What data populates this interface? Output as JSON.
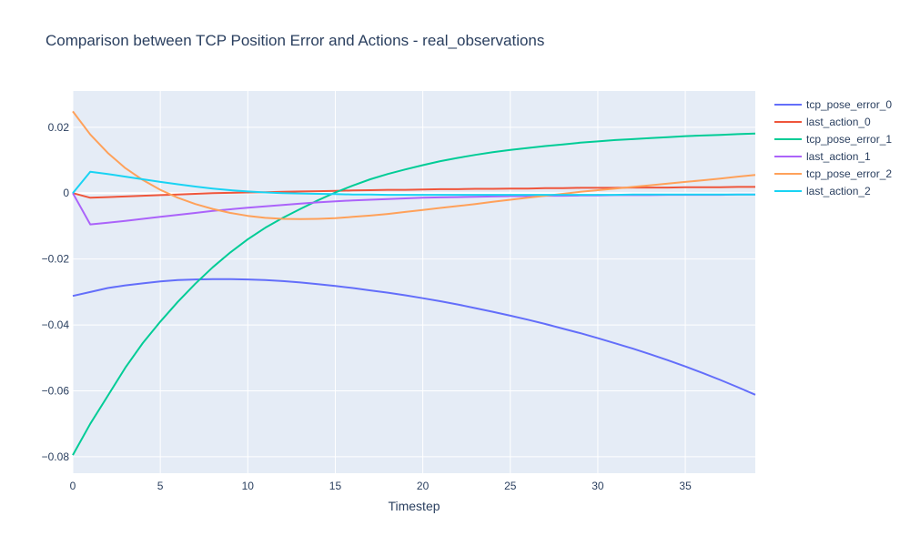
{
  "chart_data": {
    "type": "line",
    "title": "Comparison between TCP Position Error and Actions - real_observations",
    "xlabel": "Timestep",
    "ylabel": "",
    "xlim": [
      0,
      39
    ],
    "ylim": [
      -0.085,
      0.031
    ],
    "xticks": [
      0,
      5,
      10,
      15,
      20,
      25,
      30,
      35
    ],
    "xtick_labels": [
      "0",
      "5",
      "10",
      "15",
      "20",
      "25",
      "30",
      "35"
    ],
    "yticks": [
      0.02,
      0,
      -0.02,
      -0.04,
      -0.06,
      -0.08
    ],
    "ytick_labels": [
      "0.02",
      "0",
      "−0.02",
      "−0.04",
      "−0.06",
      "−0.08"
    ],
    "grid": true,
    "legend_position": "right",
    "x": [
      0,
      1,
      2,
      3,
      4,
      5,
      6,
      7,
      8,
      9,
      10,
      11,
      12,
      13,
      14,
      15,
      16,
      17,
      18,
      19,
      20,
      21,
      22,
      23,
      24,
      25,
      26,
      27,
      28,
      29,
      30,
      31,
      32,
      33,
      34,
      35,
      36,
      37,
      38,
      39
    ],
    "series": [
      {
        "name": "tcp_pose_error_0",
        "color": "#636efa",
        "values": [
          -0.0312,
          -0.03,
          -0.0288,
          -0.028,
          -0.0274,
          -0.0268,
          -0.0264,
          -0.0262,
          -0.0261,
          -0.0261,
          -0.0262,
          -0.0264,
          -0.0267,
          -0.0271,
          -0.0276,
          -0.0282,
          -0.0288,
          -0.0295,
          -0.0302,
          -0.031,
          -0.0319,
          -0.0328,
          -0.0338,
          -0.0349,
          -0.036,
          -0.0372,
          -0.0384,
          -0.0397,
          -0.0411,
          -0.0425,
          -0.044,
          -0.0456,
          -0.0472,
          -0.0489,
          -0.0507,
          -0.0526,
          -0.0546,
          -0.0567,
          -0.0589,
          -0.0612
        ]
      },
      {
        "name": "last_action_0",
        "color": "#ef553b",
        "values": [
          0.0,
          -0.0014,
          -0.0012,
          -0.001,
          -0.0008,
          -0.0006,
          -0.0004,
          -0.0002,
          0.0,
          0.0001,
          0.0002,
          0.0003,
          0.0004,
          0.0005,
          0.0006,
          0.0007,
          0.0008,
          0.0009,
          0.001,
          0.001,
          0.0011,
          0.0012,
          0.0012,
          0.0013,
          0.0013,
          0.0014,
          0.0014,
          0.0015,
          0.0015,
          0.0016,
          0.0016,
          0.0016,
          0.0017,
          0.0017,
          0.0017,
          0.0018,
          0.0018,
          0.0018,
          0.0019,
          0.0019
        ]
      },
      {
        "name": "tcp_pose_error_1",
        "color": "#00cc96",
        "values": [
          -0.0795,
          -0.07,
          -0.0615,
          -0.053,
          -0.0455,
          -0.039,
          -0.033,
          -0.0275,
          -0.0225,
          -0.018,
          -0.014,
          -0.0105,
          -0.0075,
          -0.0048,
          -0.0022,
          0.0002,
          0.0023,
          0.0042,
          0.0058,
          0.0072,
          0.0085,
          0.0097,
          0.0107,
          0.0116,
          0.0124,
          0.0131,
          0.0137,
          0.0143,
          0.0148,
          0.0153,
          0.0157,
          0.0161,
          0.0164,
          0.0167,
          0.017,
          0.0173,
          0.0175,
          0.0177,
          0.0179,
          0.0181
        ]
      },
      {
        "name": "last_action_1",
        "color": "#ab63fa",
        "values": [
          0.0,
          -0.0095,
          -0.009,
          -0.0084,
          -0.0078,
          -0.0072,
          -0.0066,
          -0.006,
          -0.0054,
          -0.0049,
          -0.0044,
          -0.004,
          -0.0036,
          -0.0032,
          -0.0028,
          -0.0025,
          -0.0022,
          -0.002,
          -0.0018,
          -0.0016,
          -0.0014,
          -0.0013,
          -0.0012,
          -0.0011,
          -0.001,
          -0.0009,
          -0.0009,
          -0.0008,
          -0.0008,
          -0.0007,
          -0.0007,
          -0.0006,
          -0.0006,
          -0.0006,
          -0.0005,
          -0.0005,
          -0.0005,
          -0.0005,
          -0.0004,
          -0.0004
        ]
      },
      {
        "name": "tcp_pose_error_2",
        "color": "#ffa15a",
        "values": [
          0.0248,
          0.0178,
          0.0122,
          0.0076,
          0.004,
          0.001,
          -0.0014,
          -0.0033,
          -0.0048,
          -0.006,
          -0.0069,
          -0.0075,
          -0.0078,
          -0.0079,
          -0.0078,
          -0.0076,
          -0.0072,
          -0.0068,
          -0.0063,
          -0.0057,
          -0.0051,
          -0.0045,
          -0.0039,
          -0.0033,
          -0.0026,
          -0.002,
          -0.0014,
          -0.0008,
          -0.0002,
          0.0004,
          0.0009,
          0.0014,
          0.0019,
          0.0024,
          0.0029,
          0.0034,
          0.0039,
          0.0044,
          0.005,
          0.0055
        ]
      },
      {
        "name": "last_action_2",
        "color": "#19d3f3",
        "values": [
          0.0,
          0.0065,
          0.0058,
          0.005,
          0.0042,
          0.0034,
          0.0027,
          0.002,
          0.0014,
          0.0009,
          0.0005,
          0.0002,
          0.0,
          -0.0001,
          -0.0002,
          -0.0003,
          -0.0004,
          -0.0004,
          -0.0005,
          -0.0005,
          -0.0005,
          -0.0005,
          -0.0005,
          -0.0005,
          -0.0005,
          -0.0005,
          -0.0005,
          -0.0005,
          -0.0005,
          -0.0005,
          -0.0005,
          -0.0005,
          -0.0004,
          -0.0004,
          -0.0004,
          -0.0004,
          -0.0004,
          -0.0004,
          -0.0004,
          -0.0004
        ]
      }
    ]
  }
}
